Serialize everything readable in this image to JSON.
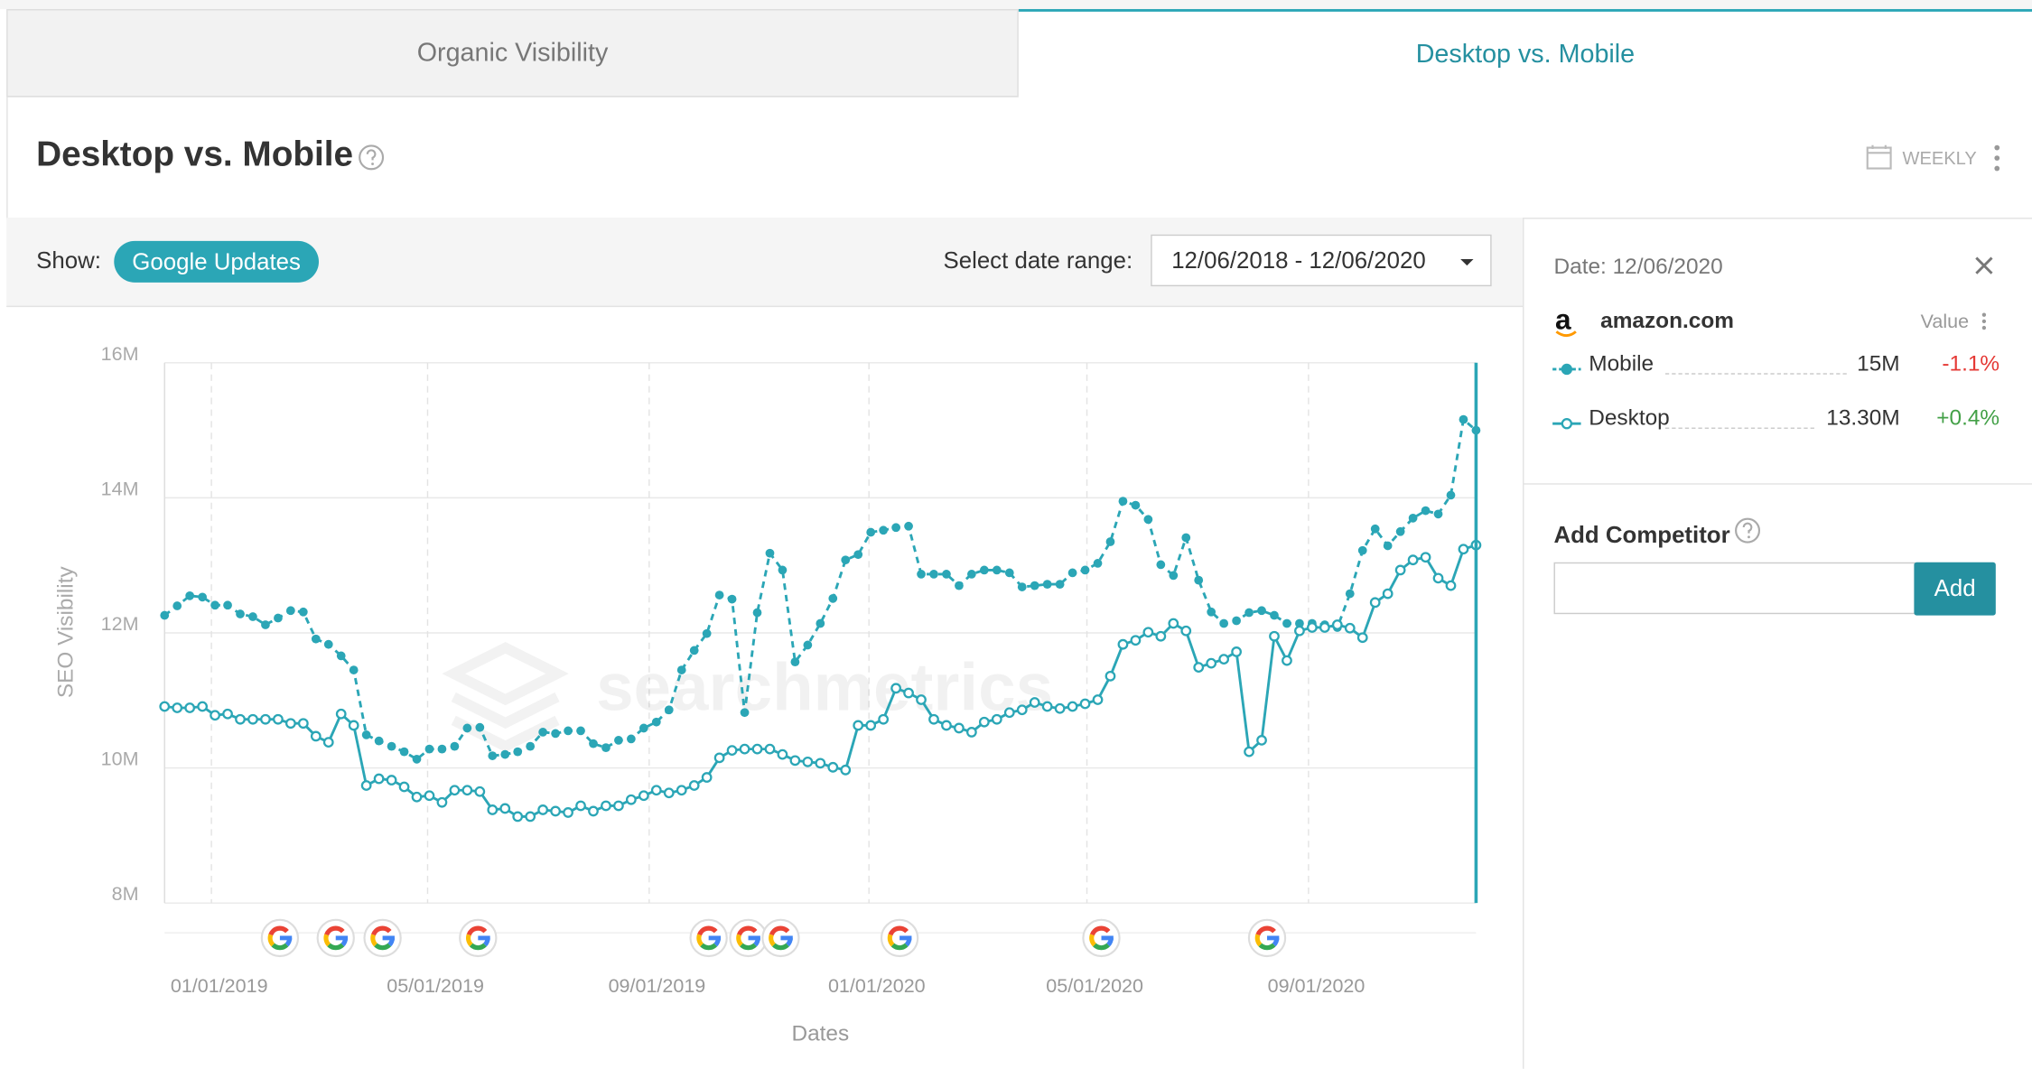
{
  "tabs": [
    {
      "label": "Organic Visibility"
    },
    {
      "label": "Desktop vs. Mobile"
    }
  ],
  "header": {
    "title": "Desktop vs. Mobile",
    "period": "WEEKLY"
  },
  "controls": {
    "show_label": "Show:",
    "toggle": "Google Updates",
    "range_label": "Select date range:",
    "range_value": "12/06/2018 - 12/06/2020"
  },
  "chart_data": {
    "type": "line",
    "y_label": "SEO Visibility",
    "x_label": "Dates",
    "watermark": "searchmetrics",
    "x": [
      "12/06/2018",
      "12/13/2018",
      "12/20/2018",
      "12/27/2018",
      "01/03/2019",
      "01/10/2019",
      "01/17/2019",
      "01/24/2019",
      "01/31/2019",
      "02/07/2019",
      "02/14/2019",
      "02/21/2019",
      "02/28/2019",
      "03/07/2019",
      "03/14/2019",
      "03/21/2019",
      "03/28/2019",
      "04/04/2019",
      "04/11/2019",
      "04/18/2019",
      "04/25/2019",
      "05/02/2019",
      "05/09/2019",
      "05/16/2019",
      "05/23/2019",
      "05/30/2019",
      "06/06/2019",
      "06/13/2019",
      "06/20/2019",
      "06/27/2019",
      "07/04/2019",
      "07/11/2019",
      "07/18/2019",
      "07/25/2019",
      "08/01/2019",
      "08/08/2019",
      "08/15/2019",
      "08/22/2019",
      "08/29/2019",
      "09/05/2019",
      "09/12/2019",
      "09/19/2019",
      "09/26/2019",
      "10/03/2019",
      "10/10/2019",
      "10/17/2019",
      "10/24/2019",
      "10/31/2019",
      "11/07/2019",
      "11/14/2019",
      "11/21/2019",
      "11/28/2019",
      "12/05/2019",
      "12/12/2019",
      "12/19/2019",
      "12/26/2019",
      "01/02/2020",
      "01/09/2020",
      "01/16/2020",
      "01/23/2020",
      "01/30/2020",
      "02/06/2020",
      "02/13/2020",
      "02/20/2020",
      "02/27/2020",
      "03/05/2020",
      "03/12/2020",
      "03/19/2020",
      "03/26/2020",
      "04/02/2020",
      "04/09/2020",
      "04/16/2020",
      "04/23/2020",
      "04/30/2020",
      "05/07/2020",
      "05/14/2020",
      "05/21/2020",
      "05/28/2020",
      "06/04/2020",
      "06/11/2020",
      "06/18/2020",
      "06/25/2020",
      "07/02/2020",
      "07/09/2020",
      "07/16/2020",
      "07/23/2020",
      "07/30/2020",
      "08/06/2020",
      "08/13/2020",
      "08/20/2020",
      "08/27/2020",
      "09/03/2020",
      "09/10/2020",
      "09/17/2020",
      "09/24/2020",
      "10/01/2020",
      "10/08/2020",
      "10/15/2020",
      "10/22/2020",
      "10/29/2020",
      "11/05/2020",
      "11/12/2020",
      "11/19/2020",
      "11/26/2020",
      "12/03/2020"
    ],
    "series": [
      {
        "name": "Mobile",
        "color": "#2ba6b6",
        "style": "dashed",
        "marker": "filled",
        "values": [
          12.26,
          12.4,
          12.55,
          12.53,
          12.41,
          12.41,
          12.28,
          12.24,
          12.12,
          12.22,
          12.33,
          12.31,
          11.91,
          11.83,
          11.66,
          11.45,
          10.49,
          10.4,
          10.32,
          10.24,
          10.13,
          10.28,
          10.28,
          10.32,
          10.59,
          10.6,
          10.18,
          10.2,
          10.24,
          10.32,
          10.53,
          10.51,
          10.55,
          10.55,
          10.36,
          10.3,
          10.41,
          10.43,
          10.59,
          10.68,
          10.86,
          11.45,
          11.74,
          11.99,
          12.56,
          12.5,
          10.82,
          12.3,
          13.18,
          12.93,
          11.57,
          11.82,
          12.14,
          12.51,
          13.08,
          13.16,
          13.49,
          13.52,
          13.56,
          13.58,
          12.87,
          12.87,
          12.87,
          12.7,
          12.87,
          12.93,
          12.93,
          12.89,
          12.68,
          12.7,
          12.72,
          12.72,
          12.89,
          12.93,
          13.03,
          13.35,
          13.95,
          13.89,
          13.68,
          13.01,
          12.85,
          13.41,
          12.78,
          12.31,
          12.14,
          12.18,
          12.3,
          12.33,
          12.26,
          12.14,
          12.14,
          12.14,
          12.12,
          12.08,
          12.58,
          13.22,
          13.54,
          13.29,
          13.5,
          13.7,
          13.81,
          13.76,
          14.04,
          15.16,
          15.0
        ]
      },
      {
        "name": "Desktop",
        "color": "#2ba6b6",
        "style": "solid",
        "marker": "hollow",
        "values": [
          10.91,
          10.89,
          10.89,
          10.91,
          10.78,
          10.8,
          10.72,
          10.72,
          10.72,
          10.72,
          10.66,
          10.66,
          10.47,
          10.38,
          10.8,
          10.63,
          9.74,
          9.84,
          9.82,
          9.72,
          9.57,
          9.59,
          9.49,
          9.67,
          9.67,
          9.65,
          9.38,
          9.4,
          9.28,
          9.28,
          9.38,
          9.36,
          9.34,
          9.44,
          9.36,
          9.44,
          9.44,
          9.53,
          9.59,
          9.67,
          9.63,
          9.67,
          9.74,
          9.86,
          10.15,
          10.26,
          10.28,
          10.28,
          10.28,
          10.2,
          10.11,
          10.09,
          10.07,
          10.01,
          9.97,
          10.63,
          10.63,
          10.72,
          11.18,
          11.11,
          11.01,
          10.72,
          10.63,
          10.59,
          10.53,
          10.68,
          10.72,
          10.82,
          10.86,
          10.97,
          10.91,
          10.88,
          10.91,
          10.95,
          11.01,
          11.36,
          11.83,
          11.89,
          12.01,
          11.95,
          12.14,
          12.03,
          11.49,
          11.55,
          11.61,
          11.72,
          10.24,
          10.41,
          11.95,
          11.59,
          12.03,
          12.08,
          12.08,
          12.12,
          12.07,
          11.93,
          12.45,
          12.58,
          12.93,
          13.08,
          13.12,
          12.81,
          12.7,
          13.24,
          13.3
        ]
      }
    ],
    "xlim": [
      "12/06/2018",
      "12/03/2020"
    ],
    "xticks": [
      "01/01/2019",
      "05/01/2019",
      "09/01/2019",
      "01/01/2020",
      "05/01/2020",
      "09/01/2020"
    ],
    "ylim": [
      8,
      16
    ],
    "yticks": [
      {
        "value": 8,
        "label": "8M"
      },
      {
        "value": 10,
        "label": "10M"
      },
      {
        "value": 12,
        "label": "12M"
      },
      {
        "value": 14,
        "label": "14M"
      },
      {
        "value": 16,
        "label": "16M"
      }
    ],
    "grid": true,
    "update_dates": [
      "02/08/2019",
      "03/11/2019",
      "04/06/2019",
      "05/29/2019",
      "10/04/2019",
      "10/26/2019",
      "11/13/2019",
      "01/18/2020",
      "05/09/2020",
      "08/09/2020"
    ]
  },
  "sidebar": {
    "date": "Date: 12/06/2020",
    "site_logo": "a",
    "site": "amazon.com",
    "value_header": "Value",
    "rows": [
      {
        "name": "Mobile",
        "value": "15M",
        "change": "-1.1%"
      },
      {
        "name": "Desktop",
        "value": "13.30M",
        "change": "+0.4%"
      }
    ],
    "add_title": "Add Competitor",
    "add_button": "Add"
  }
}
